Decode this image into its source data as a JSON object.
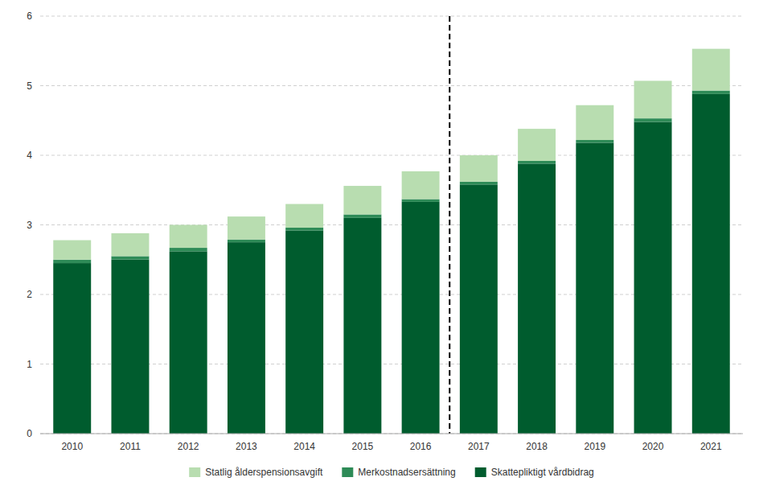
{
  "chart_data": {
    "type": "bar",
    "stacked": true,
    "categories": [
      "2010",
      "2011",
      "2012",
      "2013",
      "2014",
      "2015",
      "2016",
      "2017",
      "2018",
      "2019",
      "2020",
      "2021"
    ],
    "series": [
      {
        "name": "Skattepliktigt vårdbidrag",
        "color": "#005c2e",
        "values": [
          2.45,
          2.5,
          2.62,
          2.75,
          2.92,
          3.1,
          3.33,
          3.58,
          3.88,
          4.18,
          4.48,
          4.88
        ]
      },
      {
        "name": "Merkostnadsersättning",
        "color": "#2e8b57",
        "values": [
          0.05,
          0.05,
          0.05,
          0.04,
          0.04,
          0.05,
          0.04,
          0.04,
          0.04,
          0.04,
          0.05,
          0.05
        ]
      },
      {
        "name": "Statlig ålderspensionsavgift",
        "color": "#b8ddb0",
        "values": [
          0.28,
          0.33,
          0.33,
          0.33,
          0.34,
          0.41,
          0.4,
          0.38,
          0.46,
          0.5,
          0.54,
          0.6
        ]
      }
    ],
    "vline_x": 6.5,
    "ylim": [
      0,
      6
    ],
    "yticks": [
      0,
      1,
      2,
      3,
      4,
      5,
      6
    ],
    "grid": true,
    "legend": "bottom"
  }
}
